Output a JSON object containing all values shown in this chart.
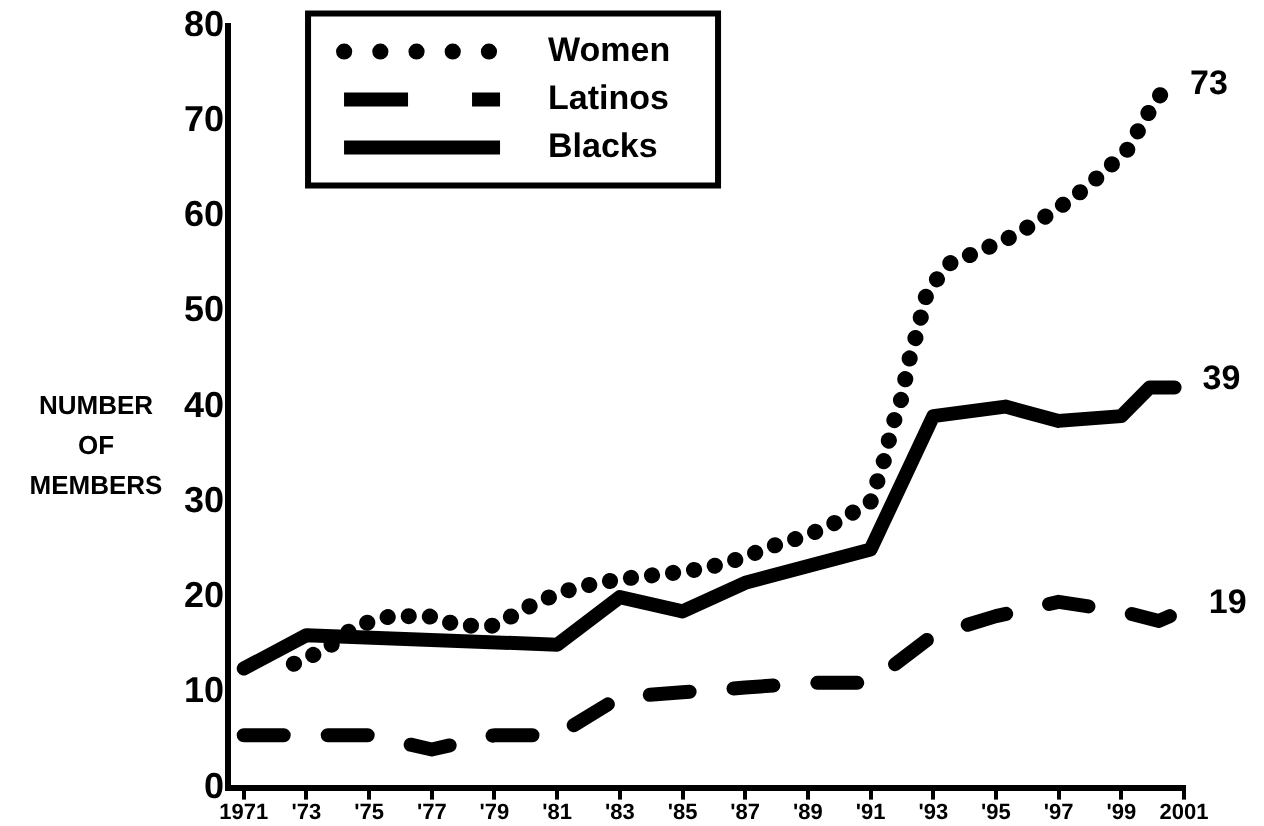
{
  "chart_data": {
    "type": "line",
    "ylabel": "NUMBER OF MEMBERS",
    "xlim": [
      1970.5,
      2001
    ],
    "xticks": [
      1971,
      {
        "value": 1973,
        "label": "'73"
      },
      {
        "value": 1975,
        "label": "'75"
      },
      {
        "value": 1977,
        "label": "'77"
      },
      {
        "value": 1979,
        "label": "'79"
      },
      {
        "value": 1981,
        "label": "'81"
      },
      {
        "value": 1983,
        "label": "'83"
      },
      {
        "value": 1985,
        "label": "'85"
      },
      {
        "value": 1987,
        "label": "'87"
      },
      {
        "value": 1989,
        "label": "'89"
      },
      {
        "value": 1991,
        "label": "'91"
      },
      {
        "value": 1993,
        "label": "'93"
      },
      {
        "value": 1995,
        "label": "'95"
      },
      {
        "value": 1997,
        "label": "'97"
      },
      {
        "value": 1999,
        "label": "'99"
      },
      2001
    ],
    "ylim": [
      0,
      80
    ],
    "yticks": [
      0,
      10,
      20,
      30,
      40,
      50,
      60,
      70,
      80
    ],
    "grid": false,
    "legend": "top left",
    "marker": "none",
    "series": [
      {
        "name": "Women",
        "color": "#000000",
        "line_style": "dotted",
        "x": [
          1972.6,
          1973.6,
          1974.6,
          1975.7,
          1976.9,
          1977.9,
          1979,
          1980.1,
          1981.1,
          1982.3,
          1983.3,
          1984.6,
          1985.7,
          1986.8,
          1988,
          1989,
          1990,
          1991,
          1991.4,
          1991.7,
          1992,
          1992.2,
          1992.5,
          1992.8,
          1993.5,
          1994.6,
          1995.6,
          1996.6,
          1997.5,
          1998.4,
          1999.2,
          1999.8,
          2000.3
        ],
        "values": [
          13,
          14.5,
          17,
          18,
          18,
          17,
          17,
          19,
          20.5,
          21.5,
          22,
          22.5,
          23,
          24,
          25.5,
          26.5,
          28,
          30,
          34,
          38,
          41,
          44.5,
          48,
          52,
          55,
          56.5,
          58,
          60,
          62,
          64.5,
          67,
          70.5,
          73
        ]
      },
      {
        "name": "Latinos",
        "color": "#000000",
        "line_style": "dashed",
        "x": [
          1971,
          1975,
          1977,
          1979,
          1981,
          1983,
          1985,
          1987,
          1989,
          1991,
          1993,
          1995,
          1997,
          1999,
          2000.2,
          2000.9
        ],
        "values": [
          5.5,
          5.5,
          4,
          5.5,
          5.5,
          9.5,
          10,
          10.5,
          11,
          11,
          16,
          18,
          19.5,
          18.5,
          17.5,
          18.5
        ]
      },
      {
        "name": "Blacks",
        "color": "#000000",
        "line_style": "solid",
        "x": [
          1971,
          1973,
          1981,
          1983,
          1985,
          1987,
          1991,
          1993,
          1995.3,
          1997,
          1999,
          1999.9,
          2000.7
        ],
        "values": [
          12.5,
          16,
          15,
          20,
          18.5,
          21.5,
          25,
          39,
          40,
          38.5,
          39,
          42,
          42
        ]
      }
    ],
    "annotations": [
      "73",
      "19",
      "39"
    ]
  }
}
